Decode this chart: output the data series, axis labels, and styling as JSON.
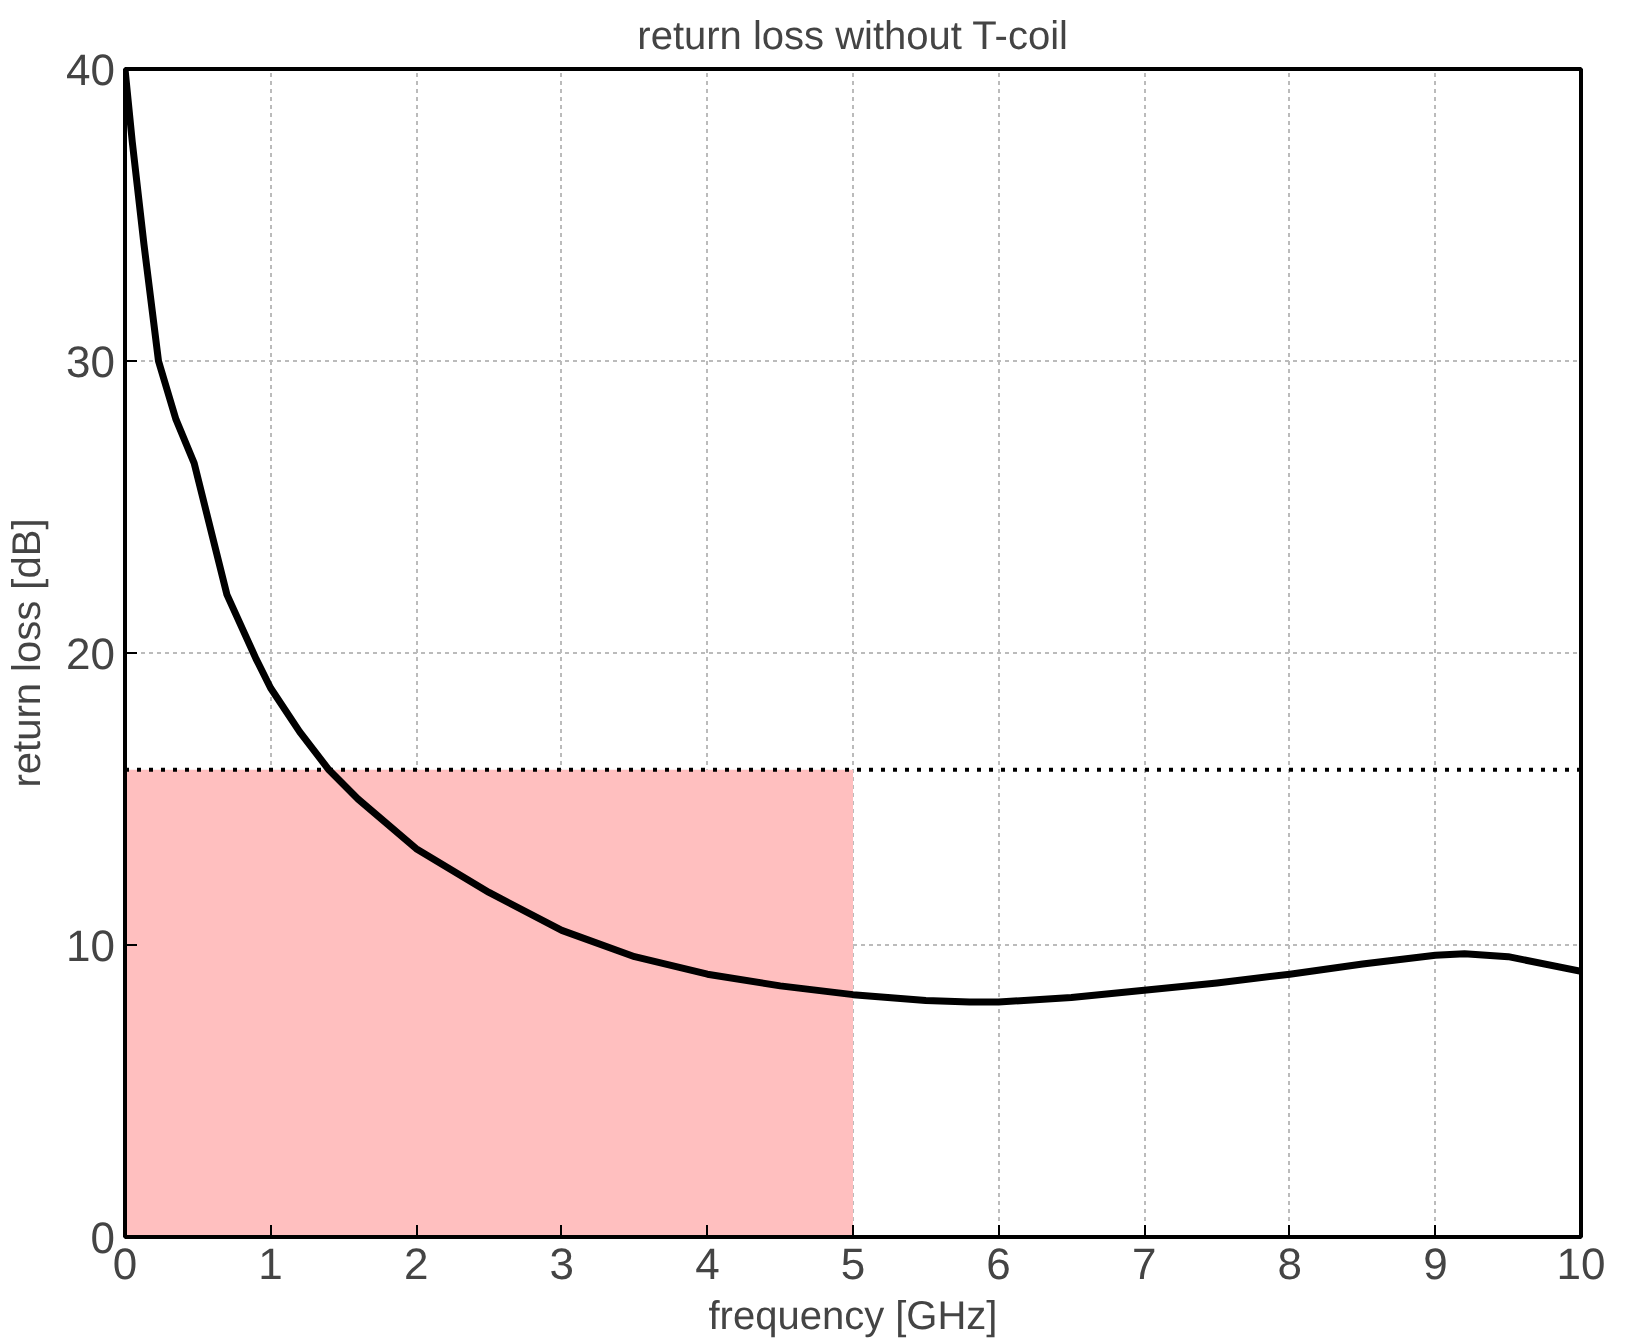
{
  "chart_data": {
    "type": "line",
    "title": "return loss without T-coil",
    "xlabel": "frequency [GHz]",
    "ylabel": "return loss [dB]",
    "x": [
      0,
      0.05,
      0.13,
      0.23,
      0.35,
      0.475,
      0.7,
      0.9,
      1,
      1.2,
      1.4,
      1.6,
      2,
      2.5,
      3,
      3.5,
      4,
      4.5,
      5,
      5.5,
      5.8,
      6,
      6.5,
      7,
      7.5,
      8,
      8.5,
      9,
      9.2,
      9.5,
      10
    ],
    "series": [
      {
        "color": "#000000",
        "values": [
          40,
          37.5,
          34,
          30,
          28,
          26.5,
          22,
          19.8,
          18.8,
          17.3,
          16,
          15,
          13.3,
          11.8,
          10.5,
          9.6,
          9,
          8.6,
          8.3,
          8.1,
          8.05,
          8.05,
          8.2,
          8.45,
          8.7,
          9,
          9.35,
          9.65,
          9.7,
          9.6,
          9.1
        ]
      }
    ],
    "xlim": [
      0,
      10
    ],
    "ylim": [
      0,
      40
    ],
    "xticks": [
      0,
      1,
      2,
      3,
      4,
      5,
      6,
      7,
      8,
      9,
      10
    ],
    "yticks": [
      0,
      10,
      20,
      30,
      40
    ],
    "grid": true,
    "line_style": "solid",
    "marker": "none",
    "ref_lines": [
      {
        "axis": "y",
        "value": 16,
        "color": "#000000",
        "line_style": "dotted"
      }
    ],
    "bands": [
      {
        "axis": "x",
        "from": 0,
        "to": 5,
        "color": "#ffbfbf"
      }
    ]
  }
}
